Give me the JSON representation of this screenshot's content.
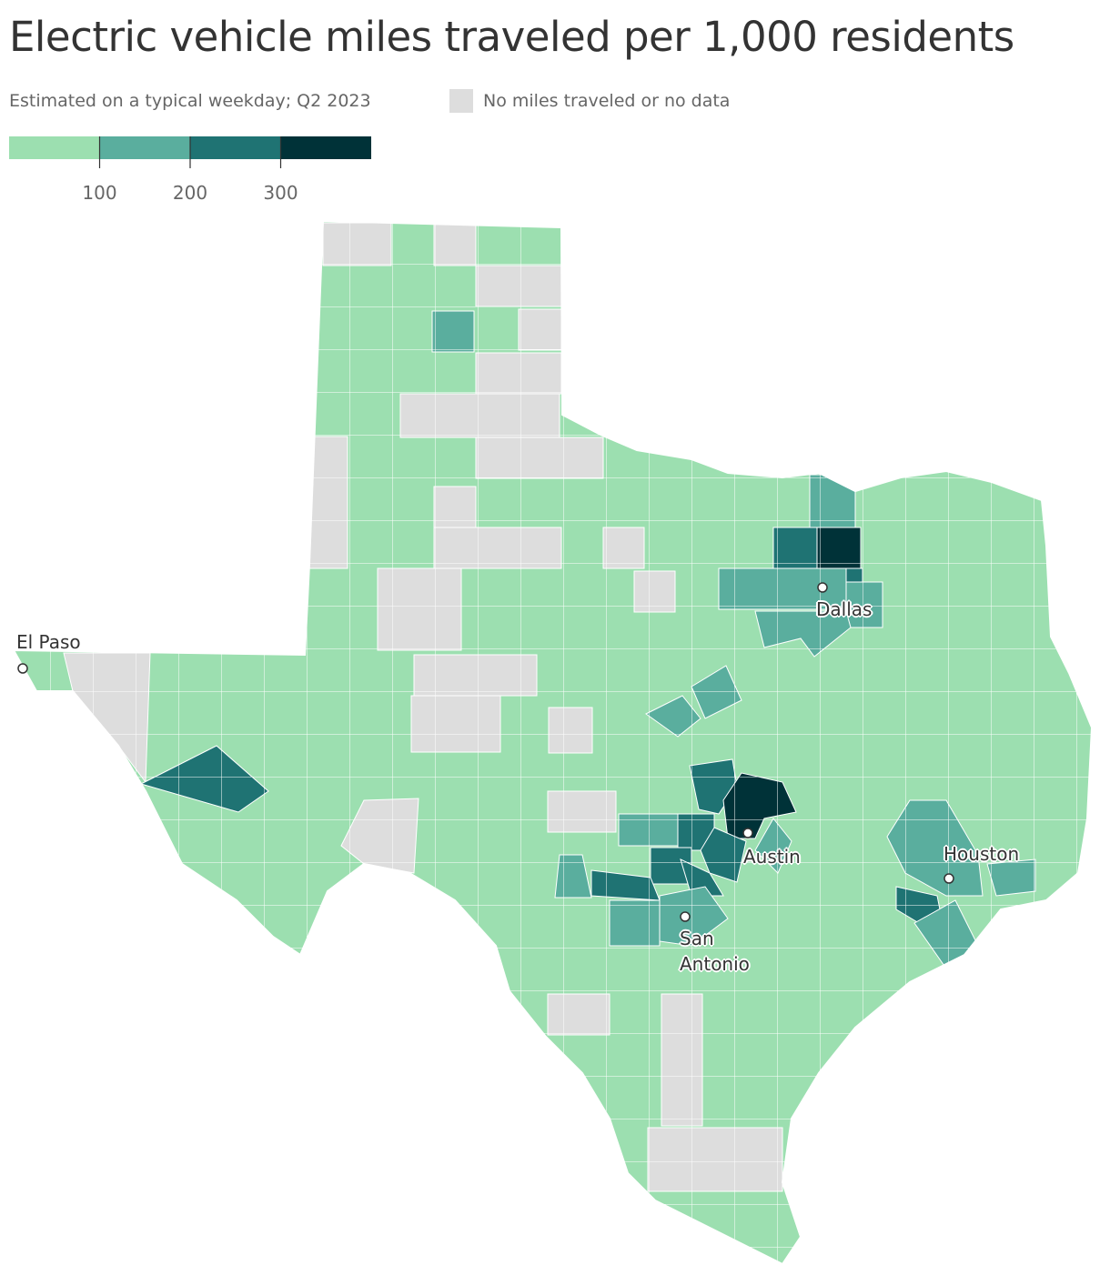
{
  "title": "Electric vehicle miles traveled per 1,000 residents",
  "subtitle": "Estimated on a typical weekday; Q2 2023",
  "no_data_label": "No miles traveled or no data",
  "no_data_color": "#dddddd",
  "legend": {
    "lim": [
      0,
      400
    ],
    "ticks": [
      100,
      200,
      300
    ],
    "colors": [
      "#9cdfb0",
      "#5aae9e",
      "#1f7373",
      "#003238"
    ]
  },
  "cities": [
    "El Paso",
    "Dallas",
    "Austin",
    "Houston",
    "San Antonio"
  ]
}
